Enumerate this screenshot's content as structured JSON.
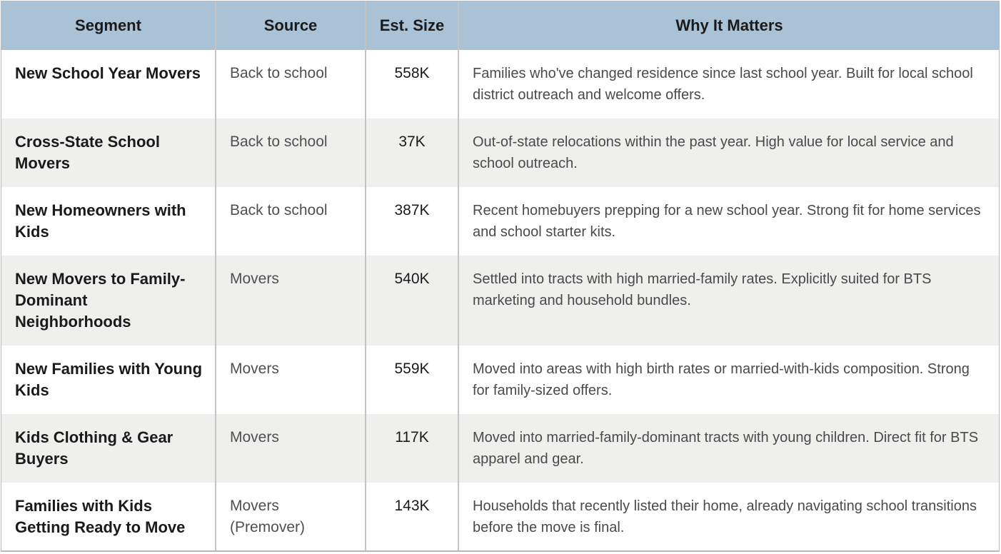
{
  "table": {
    "headers": {
      "segment": "Segment",
      "source": "Source",
      "size": "Est. Size",
      "why": "Why It Matters"
    },
    "rows": [
      {
        "segment": "New School Year Movers",
        "source": "Back to school",
        "size": "558K",
        "why": "Families who've changed residence since last school year. Built for local school district outreach and welcome offers."
      },
      {
        "segment": "Cross-State School Movers",
        "source": "Back to school",
        "size": "37K",
        "why": "Out-of-state relocations within the past year. High value for local service and school outreach."
      },
      {
        "segment": "New Homeowners with Kids",
        "source": "Back to school",
        "size": "387K",
        "why": "Recent homebuyers prepping for a new school year. Strong fit for home services and school starter kits."
      },
      {
        "segment": "New Movers to Family-Dominant Neighborhoods",
        "source": "Movers",
        "size": "540K",
        "why": "Settled into tracts with high married-family rates. Explicitly suited for BTS marketing and household bundles."
      },
      {
        "segment": "New Families with Young Kids",
        "source": "Movers",
        "size": "559K",
        "why": "Moved into areas with high birth rates or married-with-kids composition. Strong for family-sized offers."
      },
      {
        "segment": "Kids Clothing & Gear Buyers",
        "source": "Movers",
        "size": "117K",
        "why": "Moved into married-family-dominant tracts with young children. Direct fit for BTS apparel and gear."
      },
      {
        "segment": "Families with Kids Getting Ready to Move",
        "source": "Movers (Premover)",
        "size": "143K",
        "why": "Households that recently listed their home, already navigating school transitions before the move is final."
      }
    ]
  }
}
